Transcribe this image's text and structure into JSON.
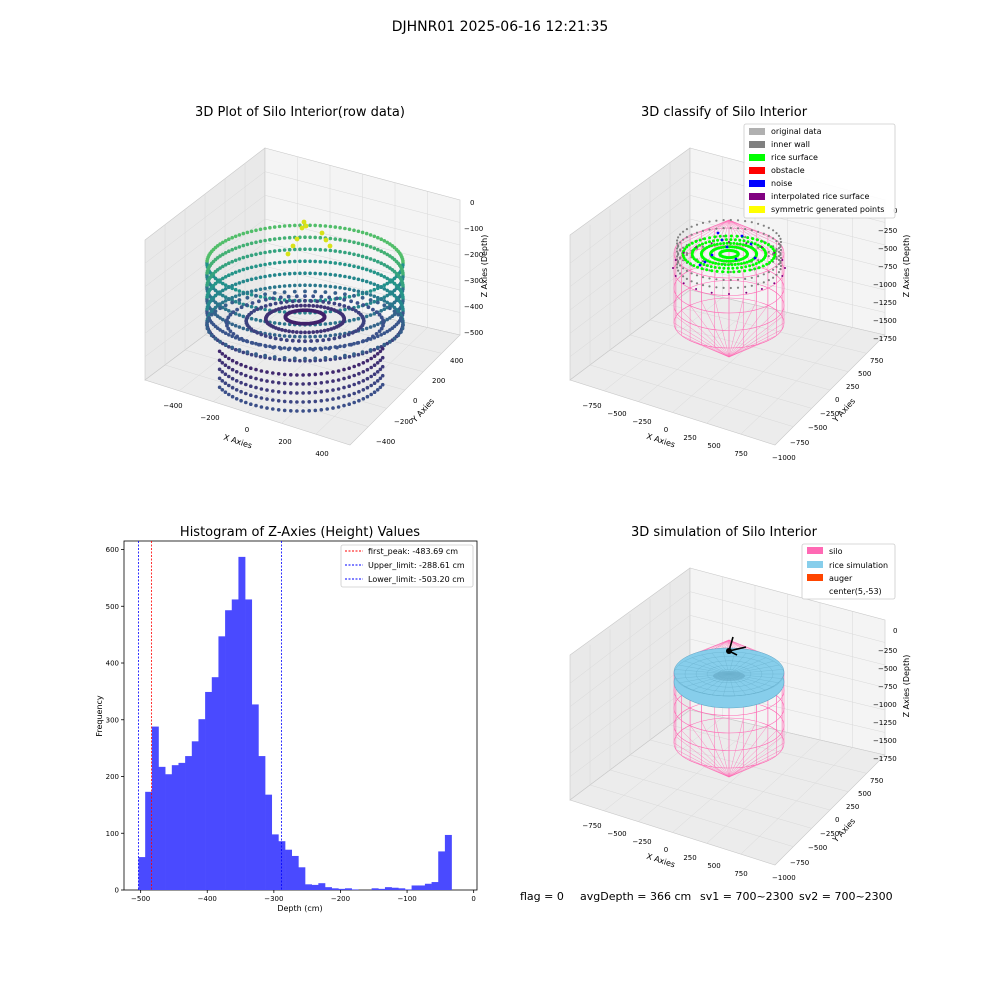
{
  "suptitle": "DJHNR01 2025-06-16 12:21:35",
  "status_line": {
    "flag": "flag = 0",
    "avg_depth": "avgDepth = 366 cm",
    "sv1": "sv1 = 700~2300",
    "sv2": "sv2 = 700~2300"
  },
  "colors": {
    "hist_bar": "#4a4aff",
    "peak_line": "#ff0000",
    "limit_line": "#0000ff",
    "silo": "#ff69b4",
    "rice_sim": "#87ceeb",
    "auger": "#ff4500",
    "rice_surface": "#00ff00",
    "inner_wall": "#808080",
    "original": "#b0b0b0",
    "obstacle": "#ff0000",
    "noise": "#0000ff",
    "interp": "#800080",
    "symmetric": "#ffff00"
  },
  "chart_data": [
    {
      "type": "scatter",
      "projection": "3d",
      "title": "3D Plot of Silo Interior(row data)",
      "xlabel": "X Axies",
      "ylabel": "Y Axies",
      "zlabel": "Z Axies (Depth)",
      "xticks": [
        "−400",
        "−200",
        "0",
        "200",
        "400"
      ],
      "yticks": [
        "−400",
        "−200",
        "0",
        "200",
        "400"
      ],
      "zticks": [
        "0",
        "−100",
        "−200",
        "−300",
        "−400",
        "−500"
      ],
      "zlim": [
        -510,
        0
      ],
      "colormap": "viridis"
    },
    {
      "type": "scatter",
      "projection": "3d",
      "title": "3D classify of Silo Interior",
      "zlabel": "Z Axies (Depth)",
      "xlabel": "X Axies",
      "ylabel": "Y Axies",
      "xticks": [
        "−750",
        "−500",
        "−250",
        "0",
        "250",
        "500",
        "750"
      ],
      "yticks": [
        "−1000",
        "−750",
        "−500",
        "−250",
        "0",
        "250",
        "500",
        "750"
      ],
      "zticks": [
        "0",
        "−250",
        "−500",
        "−750",
        "−1000",
        "−1250",
        "−1500",
        "−1750"
      ],
      "legend": [
        "original data",
        "inner wall",
        "rice surface",
        "obstacle",
        "noise",
        "interpolated rice surface",
        "symmetric generated points"
      ],
      "legend_position": "top-right"
    },
    {
      "type": "bar",
      "title": "Histogram of Z-Axies (Height) Values",
      "xlabel": "Depth (cm)",
      "ylabel": "Frequency",
      "xlim": [
        -525,
        5
      ],
      "ylim": [
        0,
        615
      ],
      "xticks": [
        -500,
        -400,
        -300,
        -200,
        -100,
        0
      ],
      "xtick_labels": [
        "−500",
        "−400",
        "−300",
        "−200",
        "−100",
        "0"
      ],
      "yticks": [
        0,
        100,
        200,
        300,
        400,
        500,
        600
      ],
      "bin_start": -503.2,
      "bin_width": 10,
      "values": [
        58,
        173,
        288,
        217,
        204,
        220,
        224,
        236,
        262,
        301,
        349,
        375,
        447,
        493,
        512,
        587,
        512,
        327,
        236,
        168,
        98,
        86,
        71,
        60,
        40,
        10,
        9,
        12,
        5,
        3,
        2,
        3,
        1,
        0,
        0,
        3,
        2,
        5,
        4,
        3,
        1,
        8,
        8,
        11,
        14,
        68,
        97
      ],
      "lines": [
        {
          "label": "first_peak: -483.69 cm",
          "x": -483.69,
          "style": "red-dashed"
        },
        {
          "label": "Upper_limit: -288.61 cm",
          "x": -288.61,
          "style": "blue-dashed"
        },
        {
          "label": "Lower_limit: -503.20 cm",
          "x": -503.2,
          "style": "blue-dashed"
        }
      ],
      "legend_position": "top-right"
    },
    {
      "type": "scatter",
      "projection": "3d",
      "title": "3D simulation of Silo Interior",
      "xlabel": "X Axies",
      "ylabel": "Y Axies",
      "zlabel": "Z Axies (Depth)",
      "xticks": [
        "−750",
        "−500",
        "−250",
        "0",
        "250",
        "500",
        "750"
      ],
      "yticks": [
        "−1000",
        "−750",
        "−500",
        "−250",
        "0",
        "250",
        "500",
        "750"
      ],
      "zticks": [
        "0",
        "−250",
        "−500",
        "−750",
        "−1000",
        "−1250",
        "−1500",
        "−1750"
      ],
      "legend": [
        "silo",
        "rice simulation",
        "auger",
        "center(5,-53)"
      ],
      "legend_position": "top-right"
    }
  ]
}
